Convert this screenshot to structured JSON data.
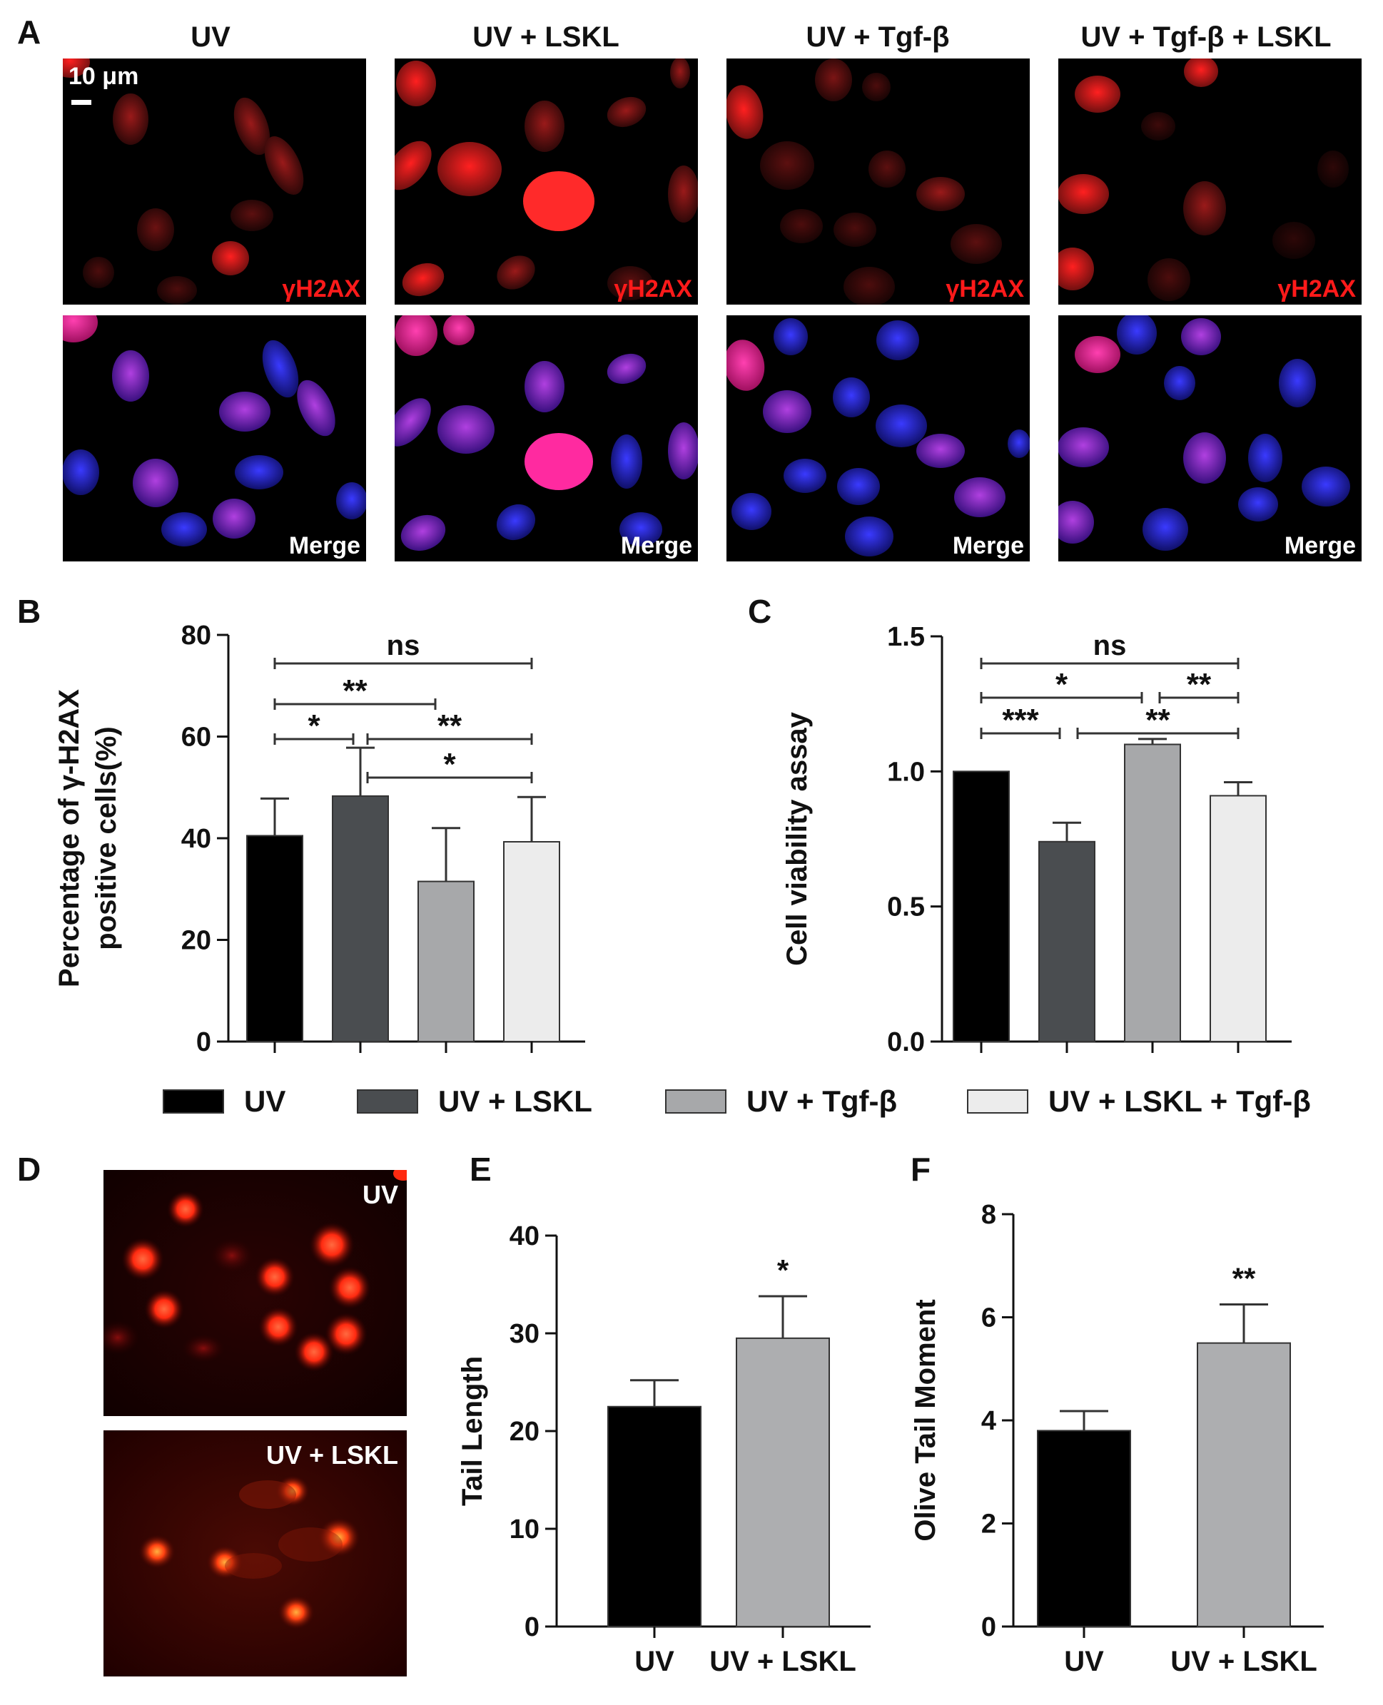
{
  "panel_a": {
    "letter": "A",
    "columns": [
      "UV",
      "UV + LSKL",
      "UV + Tgf-β",
      "UV + Tgf-β + LSKL"
    ],
    "row_labels": [
      "γH2AX",
      "Merge"
    ],
    "scale_bar": "10 μm"
  },
  "panel_d": {
    "letter": "D",
    "labels": [
      "UV",
      "UV + LSKL"
    ]
  },
  "legend": {
    "items": [
      {
        "label": "UV",
        "color": "#000000"
      },
      {
        "label": "UV + LSKL",
        "color": "#4a4d50"
      },
      {
        "label": "UV + Tgf-β",
        "color": "#a7a8aa"
      },
      {
        "label": "UV + LSKL + Tgf-β",
        "color": "#ececec"
      }
    ]
  },
  "chart_data": [
    {
      "panel": "B",
      "type": "bar",
      "ylabel": "Percentage of γ-H2AX positive cells(%)",
      "ylabel_lines": [
        "Percentage of γ-H2AX",
        "positive cells(%)"
      ],
      "ylim": [
        0,
        80
      ],
      "yticks": [
        "0",
        "20",
        "40",
        "60",
        "80"
      ],
      "categories": [
        "UV",
        "UV + LSKL",
        "UV + Tgf-β",
        "UV + LSKL + Tgf-β"
      ],
      "values": [
        40.5,
        48.3,
        31.5,
        39.3
      ],
      "errors": [
        7.3,
        9.5,
        10.5,
        8.8
      ],
      "colors": [
        "#000000",
        "#4a4d50",
        "#a7a8aa",
        "#ececec"
      ],
      "significance": [
        {
          "from": 0,
          "to": 3,
          "label": "ns"
        },
        {
          "from": 0,
          "to": 2,
          "label": "**"
        },
        {
          "from": 0,
          "to": 1,
          "label": "*"
        },
        {
          "from": 1,
          "to": 3,
          "label": "**"
        },
        {
          "from": 2,
          "to": 3,
          "label": "*"
        }
      ]
    },
    {
      "panel": "C",
      "type": "bar",
      "ylabel": "Cell viability assay",
      "ylim": [
        0,
        1.5
      ],
      "yticks": [
        "0.0",
        "0.5",
        "1.0",
        "1.5"
      ],
      "categories": [
        "UV",
        "UV + LSKL",
        "UV + Tgf-β",
        "UV + LSKL + Tgf-β"
      ],
      "values": [
        1.0,
        0.74,
        1.1,
        0.91
      ],
      "errors": [
        0,
        0.07,
        0.02,
        0.05
      ],
      "colors": [
        "#000000",
        "#4a4d50",
        "#a7a8aa",
        "#ececec"
      ],
      "significance": [
        {
          "from": 0,
          "to": 3,
          "label": "ns"
        },
        {
          "from": 0,
          "to": 2,
          "label": "*"
        },
        {
          "from": 2,
          "to": 3,
          "label": "**"
        },
        {
          "from": 0,
          "to": 1,
          "label": "***"
        },
        {
          "from": 1,
          "to": 3,
          "label": "**"
        }
      ]
    },
    {
      "panel": "E",
      "type": "bar",
      "ylabel": "Tail Length",
      "ylim": [
        0,
        40
      ],
      "yticks": [
        "0",
        "10",
        "20",
        "30",
        "40"
      ],
      "categories": [
        "UV",
        "UV + LSKL"
      ],
      "values": [
        22.5,
        29.5
      ],
      "errors": [
        2.7,
        4.3
      ],
      "colors": [
        "#000000",
        "#adaeb0"
      ],
      "stars": [
        "",
        "*"
      ]
    },
    {
      "panel": "F",
      "type": "bar",
      "ylabel": "Olive Tail Moment",
      "ylim": [
        0,
        8
      ],
      "yticks": [
        "0",
        "2",
        "4",
        "6",
        "8"
      ],
      "categories": [
        "UV",
        "UV + LSKL"
      ],
      "values": [
        3.8,
        5.5
      ],
      "errors": [
        0.38,
        0.75
      ],
      "colors": [
        "#000000",
        "#adaeb0"
      ],
      "stars": [
        "",
        "**"
      ]
    }
  ]
}
